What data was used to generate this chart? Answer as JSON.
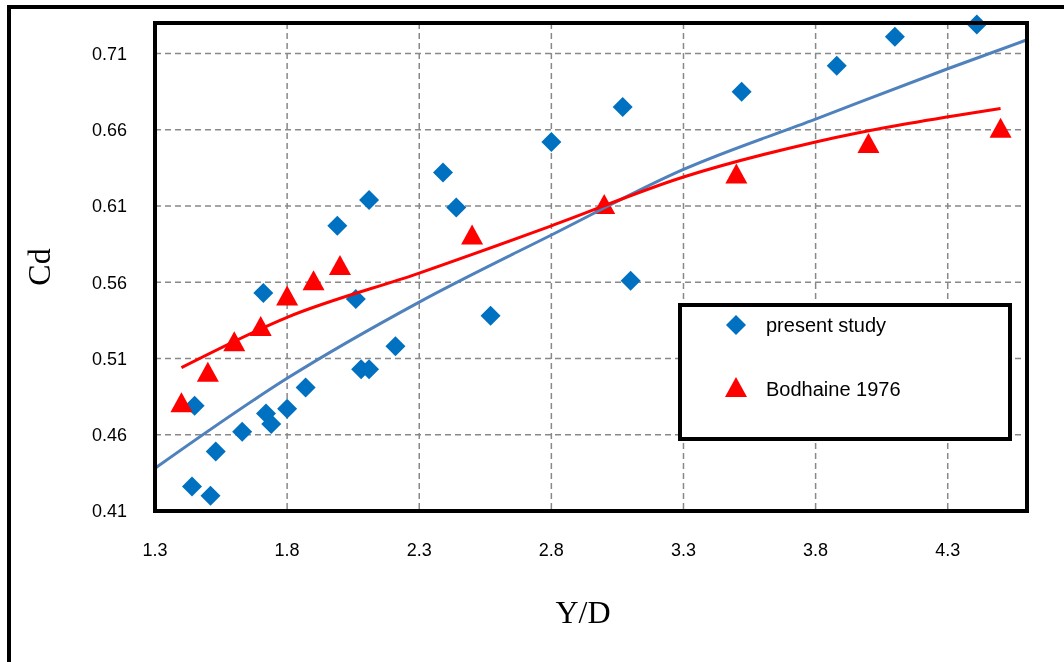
{
  "chart_data": {
    "type": "scatter",
    "xlabel": "Y/D",
    "ylabel": "Cd",
    "xlim": [
      1.3,
      4.6
    ],
    "ylim": [
      0.41,
      0.73
    ],
    "xticks": [
      1.3,
      1.8,
      2.3,
      2.8,
      3.3,
      3.8,
      4.3
    ],
    "yticks": [
      0.41,
      0.46,
      0.51,
      0.56,
      0.61,
      0.66,
      0.71
    ],
    "grid": true,
    "legend": "right",
    "series": [
      {
        "name": "present study",
        "marker": "diamond",
        "color": "#0070c0",
        "x": [
          1.45,
          1.44,
          1.51,
          1.53,
          1.63,
          1.71,
          1.72,
          1.74,
          1.8,
          1.87,
          1.99,
          2.06,
          2.08,
          2.11,
          2.11,
          2.21,
          2.39,
          2.44,
          2.57,
          2.8,
          3.07,
          3.1,
          3.52,
          3.88,
          4.1,
          4.41
        ],
        "values": [
          0.479,
          0.426,
          0.42,
          0.449,
          0.462,
          0.553,
          0.474,
          0.467,
          0.477,
          0.491,
          0.597,
          0.549,
          0.503,
          0.503,
          0.614,
          0.518,
          0.632,
          0.609,
          0.538,
          0.652,
          0.675,
          0.561,
          0.685,
          0.702,
          0.721,
          0.729
        ]
      },
      {
        "name": "Bodhaine 1976",
        "marker": "triangle",
        "color": "#ff0000",
        "x": [
          1.4,
          1.5,
          1.6,
          1.7,
          1.8,
          1.9,
          2.0,
          2.5,
          3.0,
          3.5,
          4.0,
          4.5
        ],
        "values": [
          0.48,
          0.5,
          0.52,
          0.53,
          0.55,
          0.56,
          0.57,
          0.59,
          0.61,
          0.63,
          0.65,
          0.66
        ]
      },
      {
        "type": "line",
        "marker": "none",
        "color": "#4f81bd",
        "x": [
          1.3,
          1.8,
          2.3,
          2.8,
          3.3,
          3.8,
          4.3,
          4.6
        ],
        "values": [
          0.438,
          0.497,
          0.547,
          0.591,
          0.634,
          0.667,
          0.7,
          0.719
        ]
      },
      {
        "type": "line",
        "marker": "none",
        "color": "#ff0000",
        "x": [
          1.4,
          1.8,
          2.3,
          2.8,
          3.3,
          3.8,
          4.5
        ],
        "values": [
          0.504,
          0.537,
          0.566,
          0.597,
          0.629,
          0.652,
          0.674
        ]
      }
    ]
  }
}
